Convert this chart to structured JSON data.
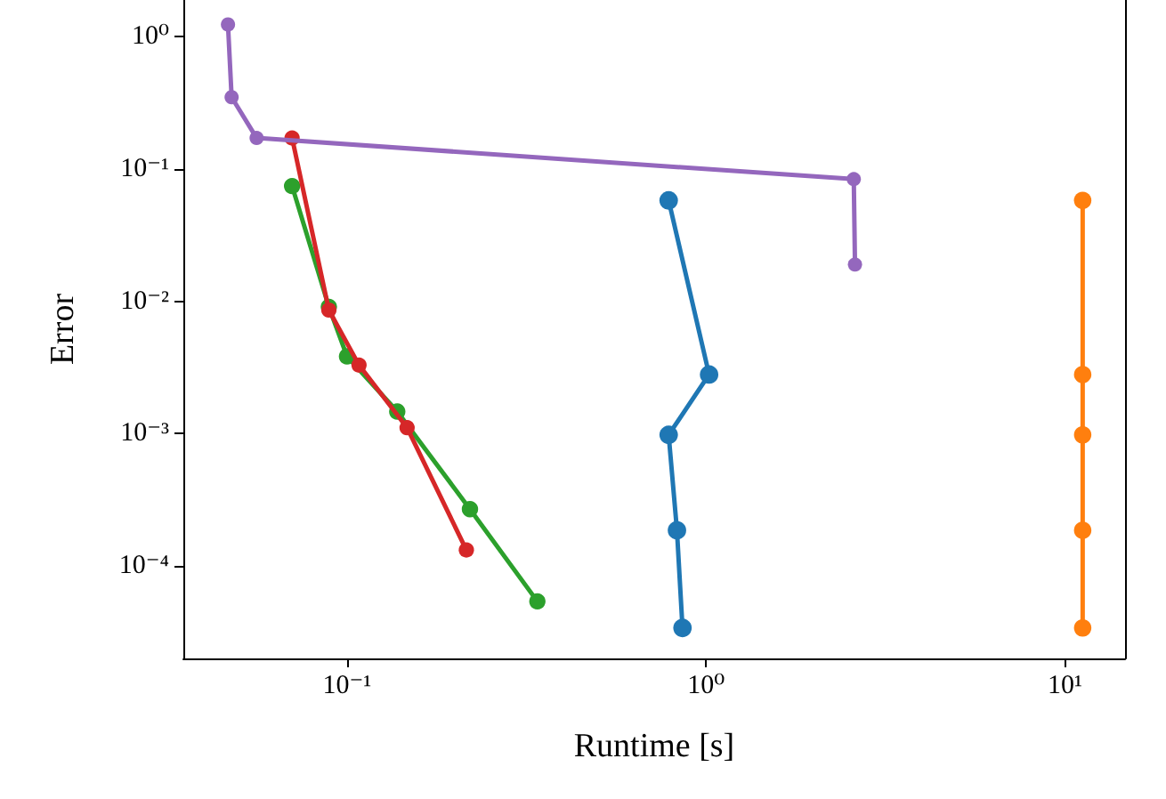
{
  "chart_data": {
    "type": "line",
    "xlabel": "Runtime [s]",
    "ylabel": "Error",
    "log": "xy",
    "grid": false,
    "marker": "circle",
    "line_style": "solid",
    "xlim": [
      0.035,
      14.7
    ],
    "ylim": [
      2e-05,
      1.9
    ],
    "xticks": [
      {
        "value": 0.1,
        "label": "10⁻¹"
      },
      {
        "value": 1,
        "label": "10⁰"
      },
      {
        "value": 10,
        "label": "10¹"
      }
    ],
    "yticks": [
      {
        "value": 0.0001,
        "label": "10⁻⁴"
      },
      {
        "value": 0.001,
        "label": "10⁻³"
      },
      {
        "value": 0.01,
        "label": "10⁻²"
      },
      {
        "value": 0.1,
        "label": "10⁻¹"
      },
      {
        "value": 1,
        "label": "10⁰"
      }
    ],
    "series": [
      {
        "color": "#1f77b4",
        "x": [
          0.787,
          1.02,
          0.787,
          0.83,
          0.86
        ],
        "values": [
          0.058,
          0.0028,
          0.00098,
          0.000186,
          3.4e-05
        ]
      },
      {
        "color": "#ff7f0e",
        "x": [
          11.2,
          11.2,
          11.2,
          11.2,
          11.2
        ],
        "values": [
          0.058,
          0.0028,
          0.00098,
          0.000186,
          3.4e-05
        ]
      },
      {
        "color": "#2ca02c",
        "x": [
          0.0703,
          0.089,
          0.1,
          0.138,
          0.22,
          0.339
        ],
        "values": [
          0.0745,
          0.0091,
          0.00384,
          0.00147,
          0.000269,
          5.4e-05
        ]
      },
      {
        "color": "#d62728",
        "x": [
          0.0703,
          0.089,
          0.108,
          0.147,
          0.215
        ],
        "values": [
          0.172,
          0.0086,
          0.0033,
          0.00111,
          0.000132
        ]
      },
      {
        "color": "#9467bd",
        "x": [
          0.0466,
          0.0477,
          0.056,
          2.58,
          2.6
        ],
        "values": [
          1.24,
          0.35,
          0.172,
          0.084,
          0.019
        ]
      }
    ]
  }
}
